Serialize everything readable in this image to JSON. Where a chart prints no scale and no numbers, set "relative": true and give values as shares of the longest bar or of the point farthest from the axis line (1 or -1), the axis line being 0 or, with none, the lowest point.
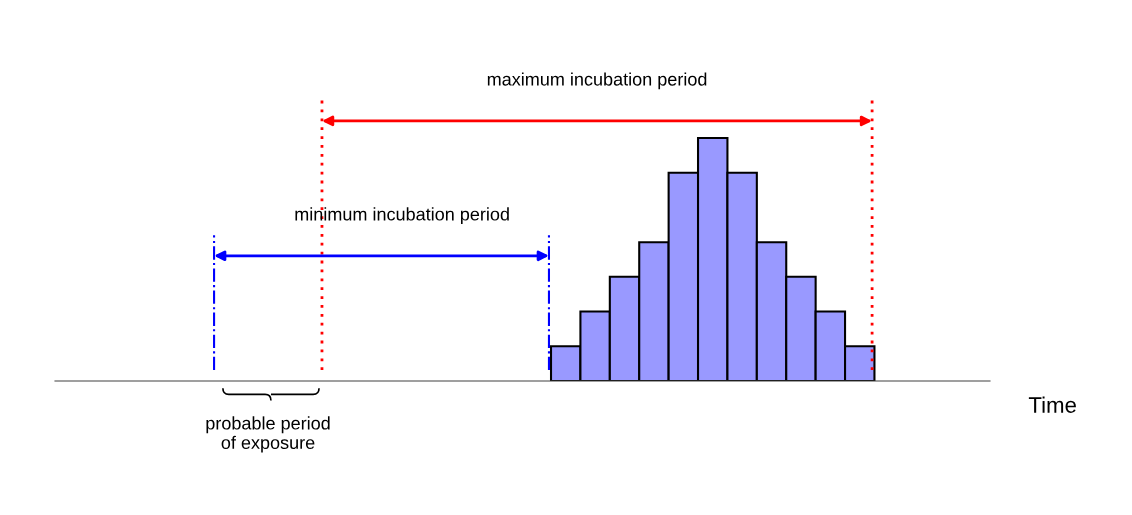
{
  "chart_data": {
    "type": "bar",
    "relative": true,
    "categories": [
      null,
      null,
      null,
      null,
      null,
      null,
      null,
      null,
      null,
      null,
      null
    ],
    "values": [
      0.143,
      0.286,
      0.429,
      0.571,
      0.857,
      1,
      0.857,
      0.571,
      0.429,
      0.286,
      0.143
    ],
    "color": "#9999ff",
    "annotations": [
      "maximum incubation period",
      "minimum incubation period",
      "probable period\nof exposure",
      "Time"
    ]
  }
}
